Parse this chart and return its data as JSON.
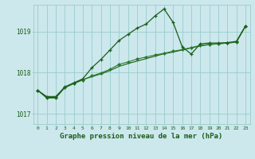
{
  "background_color": "#cce8ec",
  "plot_bg_color": "#cce8ec",
  "grid_color": "#99cccc",
  "line_color_dark": "#1a5c1a",
  "line_color_mid": "#2d7a2d",
  "xlabel": "Graphe pression niveau de la mer (hPa)",
  "xlabel_fontsize": 6.5,
  "ylabel_ticks": [
    1017,
    1018,
    1019
  ],
  "xlim": [
    -0.5,
    23.5
  ],
  "ylim": [
    1016.75,
    1019.65
  ],
  "xtick_labels": [
    "0",
    "1",
    "2",
    "3",
    "4",
    "5",
    "6",
    "7",
    "8",
    "9",
    "10",
    "11",
    "12",
    "13",
    "14",
    "15",
    "16",
    "17",
    "18",
    "19",
    "20",
    "21",
    "22",
    "23"
  ],
  "line1_x": [
    0,
    1,
    2,
    3,
    4,
    5,
    6,
    7,
    8,
    9,
    10,
    11,
    12,
    13,
    14,
    15,
    16,
    17,
    18,
    19,
    20,
    21,
    22,
    23
  ],
  "line1_y": [
    1017.57,
    1017.42,
    1017.42,
    1017.65,
    1017.75,
    1017.83,
    1017.9,
    1017.97,
    1018.05,
    1018.15,
    1018.22,
    1018.28,
    1018.34,
    1018.4,
    1018.46,
    1018.5,
    1018.55,
    1018.6,
    1018.65,
    1018.68,
    1018.7,
    1018.72,
    1018.74,
    1019.13
  ],
  "line2_x": [
    0,
    1,
    2,
    3,
    4,
    5,
    6,
    7,
    8,
    9,
    10,
    11,
    12,
    13,
    14,
    15,
    16,
    17,
    18,
    19,
    20,
    21,
    22,
    23
  ],
  "line2_y": [
    1017.57,
    1017.4,
    1017.4,
    1017.65,
    1017.75,
    1017.85,
    1018.12,
    1018.32,
    1018.55,
    1018.78,
    1018.93,
    1019.08,
    1019.18,
    1019.38,
    1019.55,
    1019.22,
    1018.63,
    1018.45,
    1018.7,
    1018.72,
    1018.72,
    1018.73,
    1018.76,
    1019.13
  ],
  "line3_x": [
    0,
    1,
    2,
    3,
    4,
    5,
    6,
    7,
    8,
    9,
    10,
    11,
    12,
    13,
    14,
    15,
    16,
    17,
    18,
    19,
    20,
    21,
    22,
    23
  ],
  "line3_y": [
    1017.57,
    1017.38,
    1017.38,
    1017.63,
    1017.73,
    1017.82,
    1017.92,
    1017.99,
    1018.08,
    1018.2,
    1018.26,
    1018.33,
    1018.38,
    1018.43,
    1018.47,
    1018.52,
    1018.56,
    1018.61,
    1018.66,
    1018.69,
    1018.7,
    1018.72,
    1018.74,
    1019.12
  ]
}
